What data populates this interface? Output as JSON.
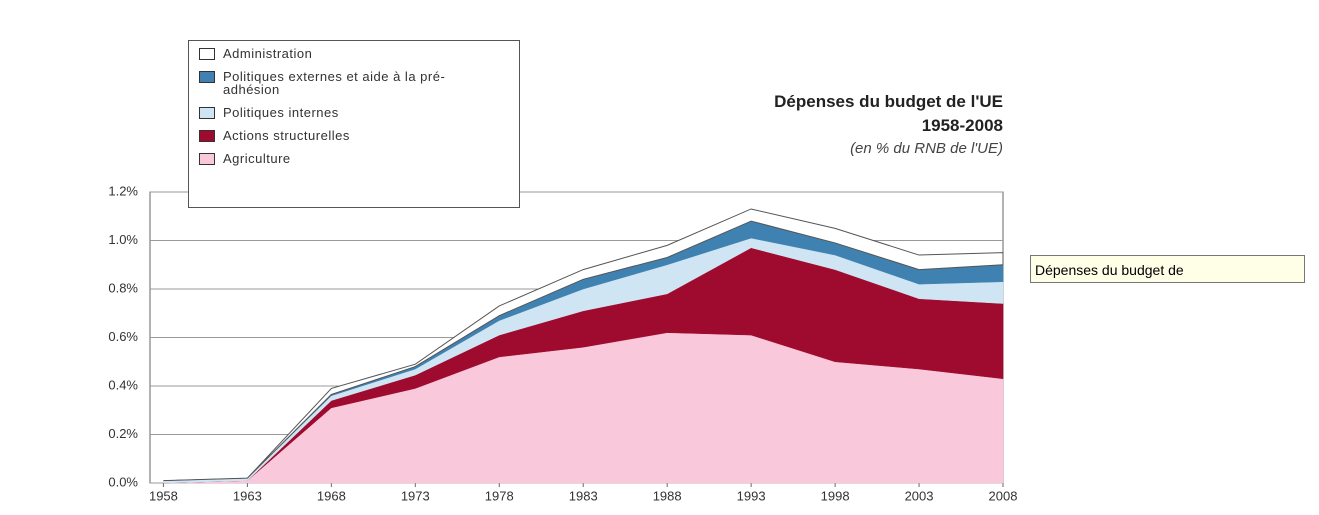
{
  "chart_data": {
    "type": "stacked_area",
    "title": "Dépenses du budget de l'UE",
    "subtitle": "1958-2008",
    "unit_note": "(en % du RNB de l'UE)",
    "annotation": "Dépenses du budget de",
    "x": [
      1958,
      1963,
      1968,
      1973,
      1978,
      1983,
      1988,
      1993,
      1998,
      2003,
      2008
    ],
    "xlim": [
      1957.2,
      2008
    ],
    "xticks": [
      1958,
      1963,
      1968,
      1973,
      1978,
      1983,
      1988,
      1993,
      1998,
      2003,
      2008
    ],
    "ylim": [
      0,
      1.2
    ],
    "yticks": [
      {
        "value": 0,
        "label": "0.0%"
      },
      {
        "value": 0.2,
        "label": "0.2%"
      },
      {
        "value": 0.4,
        "label": "0.4%"
      },
      {
        "value": 0.6,
        "label": "0.6%"
      },
      {
        "value": 0.8,
        "label": "0.8%"
      },
      {
        "value": 1.0,
        "label": "1.0%"
      },
      {
        "value": 1.2,
        "label": "1.2%"
      }
    ],
    "grid": true,
    "series": [
      {
        "name": "Agriculture",
        "color": "#f9c8da",
        "values": [
          0,
          0.01,
          0.31,
          0.39,
          0.52,
          0.56,
          0.62,
          0.61,
          0.5,
          0.47,
          0.43
        ]
      },
      {
        "name": "Actions structurelles",
        "color": "#9e0b2e",
        "values": [
          0,
          0,
          0.03,
          0.055,
          0.09,
          0.15,
          0.16,
          0.36,
          0.38,
          0.29,
          0.31
        ]
      },
      {
        "name": "Politiques internes",
        "color": "#cfe5f3",
        "values": [
          0.01,
          0.01,
          0.02,
          0.025,
          0.06,
          0.09,
          0.12,
          0.04,
          0.06,
          0.06,
          0.09
        ]
      },
      {
        "name": "Politiques externes et aide à la pré-adhésion",
        "color": "#3f82b2",
        "values": [
          0,
          0,
          0.005,
          0.01,
          0.02,
          0.04,
          0.03,
          0.07,
          0.05,
          0.06,
          0.07
        ]
      },
      {
        "name": "Administration",
        "color": "#ffffff",
        "values": [
          0,
          0,
          0.025,
          0.01,
          0.04,
          0.04,
          0.05,
          0.05,
          0.06,
          0.06,
          0.05
        ]
      }
    ]
  }
}
